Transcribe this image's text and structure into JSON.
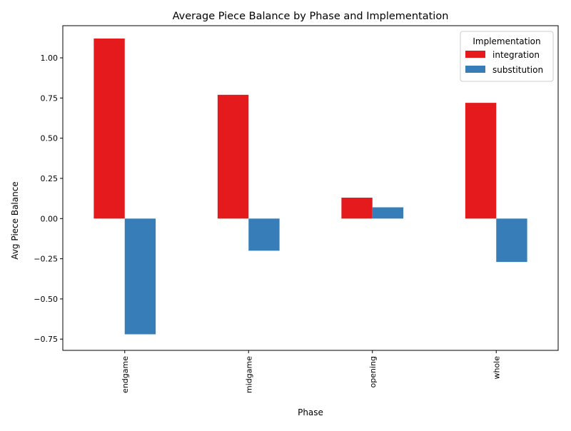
{
  "chart_data": {
    "type": "bar",
    "title": "Average Piece Balance by Phase and Implementation",
    "xlabel": "Phase",
    "ylabel": "Avg Piece Balance",
    "categories": [
      "endgame",
      "midgame",
      "opening",
      "whole"
    ],
    "series": [
      {
        "name": "integration",
        "color": "#e41a1c",
        "values": [
          1.12,
          0.77,
          0.13,
          0.72
        ]
      },
      {
        "name": "substitution",
        "color": "#377eb8",
        "values": [
          -0.72,
          -0.2,
          0.07,
          -0.27
        ]
      }
    ],
    "ylim": [
      -0.82,
      1.2
    ],
    "yticks": [
      -0.75,
      -0.5,
      -0.25,
      0.0,
      0.25,
      0.5,
      0.75,
      1.0
    ],
    "ytick_labels": [
      "−0.75",
      "−0.50",
      "−0.25",
      "0.00",
      "0.25",
      "0.50",
      "0.75",
      "1.00"
    ],
    "grid": false,
    "legend": {
      "title": "Implementation",
      "placement": "top-right"
    }
  }
}
